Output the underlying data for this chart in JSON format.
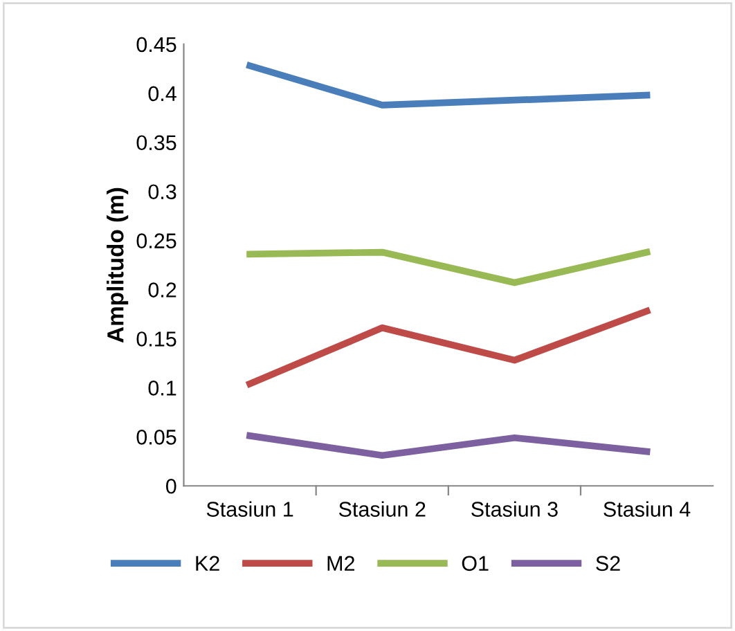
{
  "chart_data": {
    "type": "line",
    "ylabel": "Amplitudo (m)",
    "categories": [
      "Stasiun 1",
      "Stasiun 2",
      "Stasiun 3",
      "Stasiun 4"
    ],
    "series": [
      {
        "name": "K2",
        "color": "#4a7ebb",
        "values": [
          0.428,
          0.388,
          0.393,
          0.398
        ]
      },
      {
        "name": "M2",
        "color": "#be4b48",
        "values": [
          0.104,
          0.161,
          0.128,
          0.178
        ]
      },
      {
        "name": "O1",
        "color": "#98b954",
        "values": [
          0.236,
          0.238,
          0.207,
          0.238
        ]
      },
      {
        "name": "S2",
        "color": "#7d60a0",
        "values": [
          0.051,
          0.031,
          0.049,
          0.035
        ]
      }
    ],
    "ylim": [
      0,
      0.45
    ],
    "yticks": [
      0,
      0.05,
      0.1,
      0.15,
      0.2,
      0.25,
      0.3,
      0.35,
      0.4,
      0.45
    ],
    "grid": false,
    "legend": "bottom",
    "marker": "none",
    "line_style": "solid"
  }
}
